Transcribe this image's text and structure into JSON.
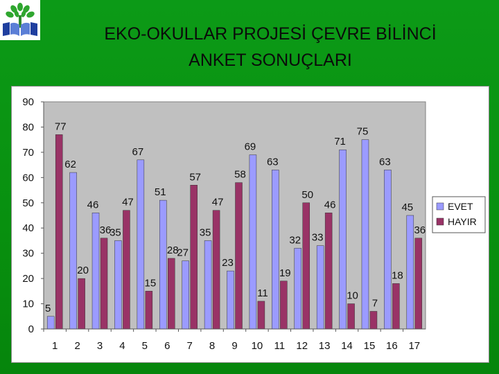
{
  "slide": {
    "title_line1": "EKO-OKULLAR PROJESİ ÇEVRE BİLİNCİ",
    "title_line2": "ANKET SONUÇLARI",
    "logo_icon": "eco-schools-tree-book-icon"
  },
  "colors": {
    "background": "#0c9a17",
    "plot_area": "#c0c0c0",
    "evet": "#9b9bff",
    "hayir": "#993366"
  },
  "chart_data": {
    "type": "bar",
    "title": "",
    "xlabel": "",
    "ylabel": "",
    "ylim": [
      0,
      90
    ],
    "yticks": [
      0,
      10,
      20,
      30,
      40,
      50,
      60,
      70,
      80,
      90
    ],
    "categories": [
      "1",
      "2",
      "3",
      "4",
      "5",
      "6",
      "7",
      "8",
      "9",
      "10",
      "11",
      "12",
      "13",
      "14",
      "15",
      "16",
      "17"
    ],
    "series": [
      {
        "name": "EVET",
        "values": [
          5,
          62,
          46,
          35,
          67,
          51,
          27,
          35,
          23,
          69,
          63,
          32,
          33,
          71,
          75,
          63,
          45
        ]
      },
      {
        "name": "HAYIR",
        "values": [
          77,
          20,
          36,
          47,
          15,
          28,
          57,
          47,
          58,
          11,
          19,
          50,
          46,
          10,
          7,
          18,
          36
        ]
      }
    ],
    "data_labels": true,
    "grid": false,
    "legend": "right"
  }
}
